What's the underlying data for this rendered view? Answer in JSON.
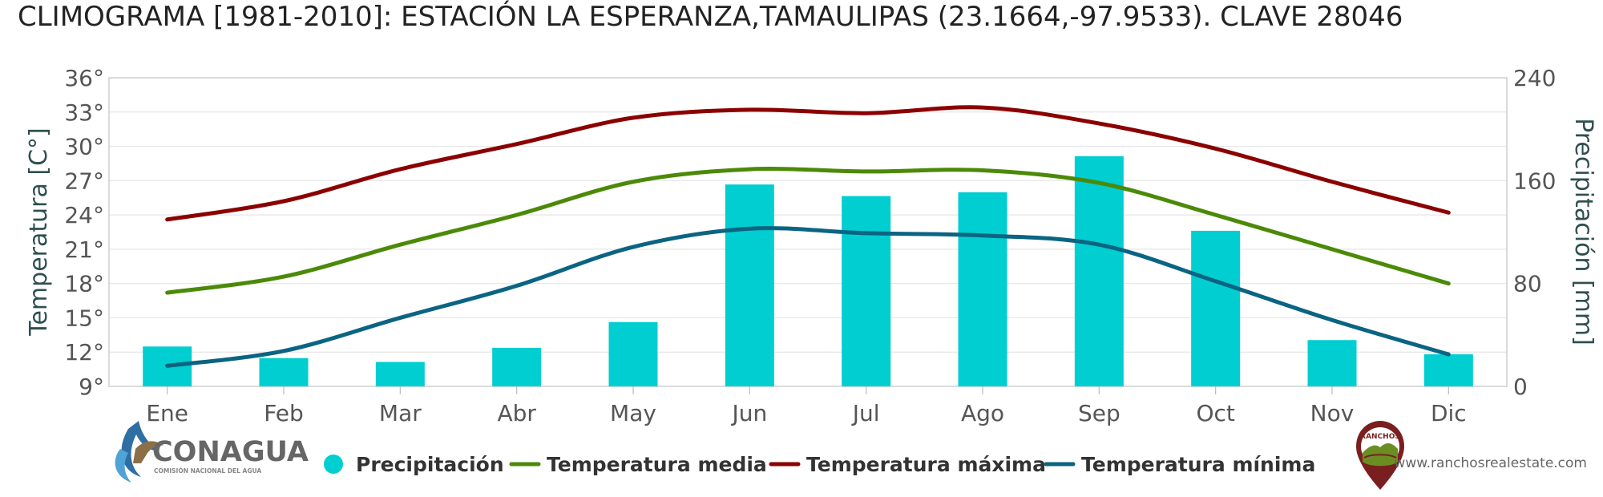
{
  "chart_data": {
    "type": "bar+line",
    "title": "CLIMOGRAMA [1981-2010]: ESTACIÓN LA ESPERANZA,TAMAULIPAS (23.1664,-97.9533). CLAVE 28046",
    "categories": [
      "Ene",
      "Feb",
      "Mar",
      "Abr",
      "May",
      "Jun",
      "Jul",
      "Ago",
      "Sep",
      "Oct",
      "Nov",
      "Dic"
    ],
    "ylabel_left": "Temperatura [C°]",
    "ylabel_right": "Precipitación [mm]",
    "y_left": {
      "min": 9,
      "max": 36,
      "step": 3,
      "suffix": "°"
    },
    "y_right": {
      "min": 0,
      "max": 240,
      "step": 80
    },
    "series": [
      {
        "name": "Precipitación",
        "type": "bar",
        "axis": "right",
        "color": "#00ced1",
        "values": [
          31,
          22,
          19,
          30,
          50,
          157,
          148,
          151,
          179,
          121,
          36,
          25
        ]
      },
      {
        "name": "Temperatura media",
        "type": "line",
        "axis": "left",
        "color": "#4b8a08",
        "values": [
          17.2,
          18.6,
          21.4,
          24.0,
          26.9,
          28.0,
          27.8,
          27.9,
          26.8,
          24.0,
          21.0,
          18.0
        ]
      },
      {
        "name": "Temperatura máxima",
        "type": "line",
        "axis": "left",
        "color": "#8b0000",
        "values": [
          23.6,
          25.2,
          28.0,
          30.2,
          32.5,
          33.2,
          32.9,
          33.4,
          32.0,
          29.8,
          26.9,
          24.2
        ]
      },
      {
        "name": "Temperatura mínima",
        "type": "line",
        "axis": "left",
        "color": "#0a6482",
        "values": [
          10.8,
          12.1,
          15.0,
          17.8,
          21.2,
          22.8,
          22.4,
          22.2,
          21.4,
          18.2,
          14.8,
          11.8
        ]
      }
    ],
    "grid": true,
    "legend": "bottom"
  },
  "footer": {
    "conagua_logo_text": "CONAGUA",
    "conagua_subtext": "COMISIÓN NACIONAL DEL AGUA",
    "ranchos_logo_text": "RANCHOS",
    "website": "www.ranchosrealestate.com"
  }
}
